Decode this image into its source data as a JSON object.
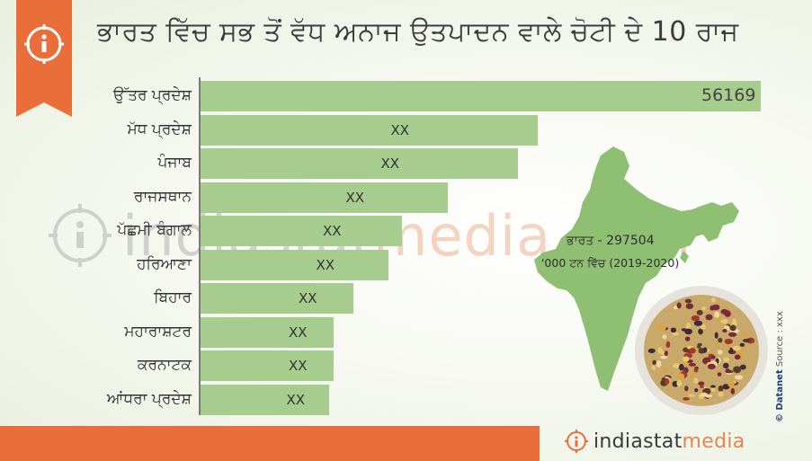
{
  "title": "ਭਾਰਤ ਵਿੱਚ ਸਭ ਤੋਂ ਵੱਧ ਅਨਾਜ ਉਤਪਾਦਨ ਵਾਲੇ ਚੋਟੀ ਦੇ 10 ਰਾਜ",
  "total_label": "ਭਾਰਤ - 297504",
  "unit_label": "'000 ਟਨ ਵਿੱਚ (2019-2020)",
  "source_text": "Source : xxx",
  "source_brand": "© Datanet",
  "watermark": {
    "part1": "indiastat",
    "part2": "media.com"
  },
  "footer": {
    "part1": "indiastat",
    "part2": "media"
  },
  "colors": {
    "bar": "#a6cc8e",
    "accent": "#ea6e3a",
    "map": "#8fbf72"
  },
  "chart_data": {
    "type": "bar",
    "orientation": "horizontal",
    "categories": [
      "ਉੱਤਰ ਪ੍ਰਦੇਸ਼",
      "ਮੱਧ ਪ੍ਰਦੇਸ਼",
      "ਪੰਜਾਬ",
      "ਰਾਜਸਥਾਨ",
      "ਪੱਛਮੀ ਬੰਗਾਲ",
      "ਹਰਿਆਣਾ",
      "ਬਿਹਾਰ",
      "ਮਹਾਰਾਸ਼ਟਰ",
      "ਕਰਨਾਟਕ",
      "ਆਂਧਰਾ ਪ੍ਰਦੇਸ਼"
    ],
    "values": [
      56169,
      33800,
      31800,
      24800,
      20200,
      18800,
      15300,
      13300,
      13300,
      12900
    ],
    "value_labels": [
      "56169",
      "XX",
      "XX",
      "XX",
      "XX",
      "XX",
      "XX",
      "XX",
      "XX",
      "XX"
    ],
    "xlim": [
      0,
      56169
    ],
    "grid": false,
    "legend": "none"
  }
}
